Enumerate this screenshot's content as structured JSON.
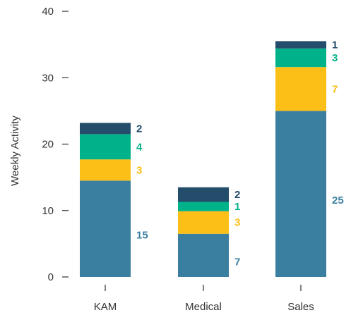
{
  "chart_data": {
    "type": "bar",
    "stacked": true,
    "categories": [
      "KAM",
      "Medical",
      "Sales"
    ],
    "series": [
      {
        "values": [
          14.5,
          6.5,
          25
        ],
        "labels": [
          "15",
          "7",
          "25"
        ],
        "color": "#3a7f9f"
      },
      {
        "values": [
          3.2,
          3.4,
          6.6
        ],
        "labels": [
          "3",
          "3",
          "7"
        ],
        "color": "#fbbf17"
      },
      {
        "values": [
          3.8,
          1.4,
          2.8
        ],
        "labels": [
          "4",
          "1",
          "3"
        ],
        "color": "#00b28a"
      },
      {
        "values": [
          1.7,
          2.2,
          1.1
        ],
        "labels": [
          "2",
          "2",
          "1"
        ],
        "color": "#234d6a"
      }
    ],
    "ylabel": "Weekly Activity",
    "xlabel": "",
    "ylim": [
      0,
      40
    ],
    "yticks": [
      0,
      10,
      20,
      30,
      40
    ],
    "grid": false
  }
}
